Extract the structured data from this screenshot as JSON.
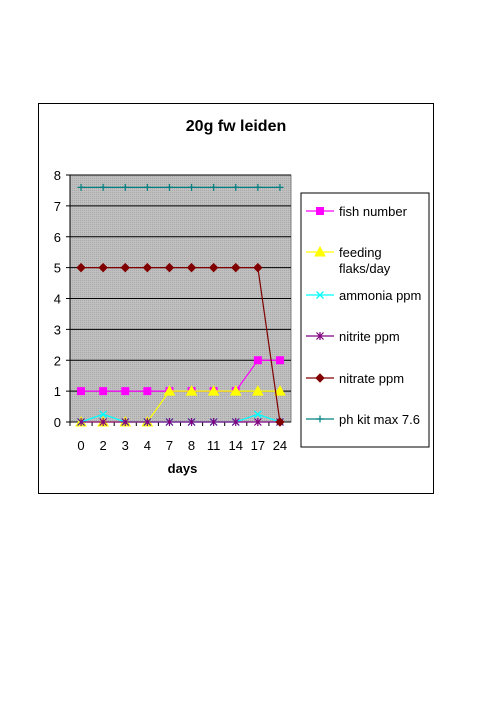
{
  "chart_data": {
    "type": "line",
    "title": "20g fw leiden",
    "xlabel": "days",
    "ylabel": "",
    "categories": [
      "0",
      "2",
      "3",
      "4",
      "7",
      "8",
      "11",
      "14",
      "17",
      "24"
    ],
    "ylim": [
      0,
      8
    ],
    "yticks": [
      "0",
      "1",
      "2",
      "3",
      "4",
      "5",
      "6",
      "7",
      "8"
    ],
    "grid": true,
    "legend_position": "right",
    "plot_background": "#c0c0c0",
    "series": [
      {
        "name": "fish number",
        "color": "#ff00ff",
        "marker": "square",
        "values": [
          1,
          1,
          1,
          1,
          1,
          1,
          1,
          1,
          2,
          2
        ]
      },
      {
        "name": "feeding flaks/day",
        "legend_lines": [
          "feeding",
          "flaks/day"
        ],
        "color": "#ffff00",
        "marker": "triangle",
        "values": [
          0,
          0,
          0,
          0,
          1,
          1,
          1,
          1,
          1,
          1
        ]
      },
      {
        "name": "ammonia ppm",
        "color": "#00ffff",
        "marker": "x",
        "values": [
          0,
          0.25,
          0,
          0,
          0,
          0,
          0,
          0,
          0.25,
          0
        ]
      },
      {
        "name": "nitrite ppm",
        "color": "#800080",
        "marker": "star",
        "values": [
          0,
          0,
          0,
          0,
          0,
          0,
          0,
          0,
          0,
          0
        ]
      },
      {
        "name": "nitrate ppm",
        "color": "#800000",
        "marker": "diamond",
        "values": [
          5,
          5,
          5,
          5,
          5,
          5,
          5,
          5,
          5,
          0
        ]
      },
      {
        "name": "ph kit max 7.6",
        "color": "#008080",
        "marker": "plus",
        "values": [
          7.6,
          7.6,
          7.6,
          7.6,
          7.6,
          7.6,
          7.6,
          7.6,
          7.6,
          7.6
        ]
      }
    ]
  }
}
